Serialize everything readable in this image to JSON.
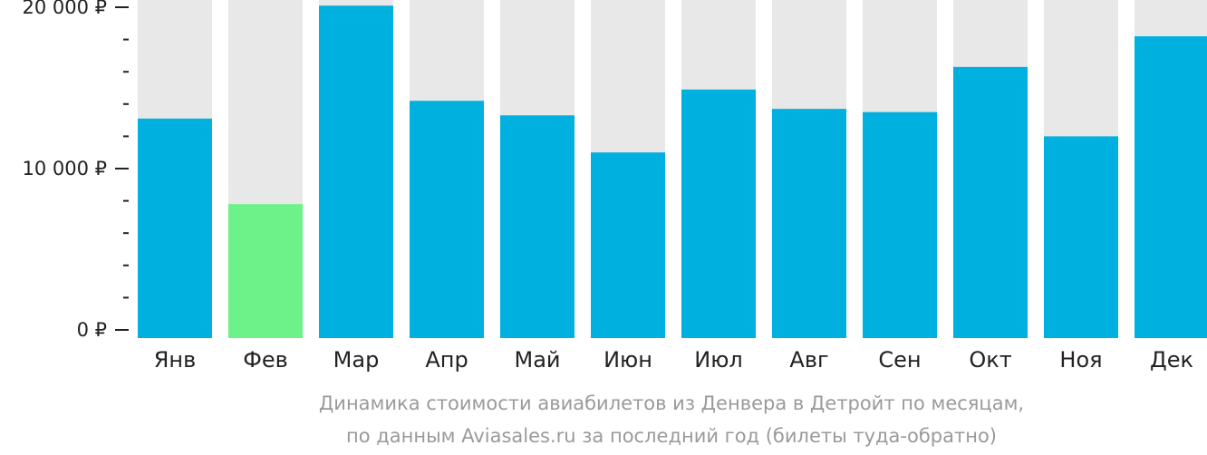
{
  "chart_data": {
    "type": "bar",
    "categories": [
      "Янв",
      "Фев",
      "Мар",
      "Апр",
      "Май",
      "Июн",
      "Июл",
      "Авг",
      "Сен",
      "Окт",
      "Ноя",
      "Дек"
    ],
    "values": [
      13100,
      7800,
      20100,
      14200,
      13300,
      11000,
      14900,
      13700,
      13500,
      16300,
      12000,
      18200
    ],
    "ylim": [
      0,
      20000
    ],
    "y_ticks": [
      {
        "value": 0,
        "label": "0 ₽"
      },
      {
        "value": 10000,
        "label": "10 000 ₽"
      },
      {
        "value": 20000,
        "label": "20 000 ₽"
      }
    ],
    "minor_tick_step": 2000,
    "highlight_index": 1,
    "colors": {
      "bar": "#00b0de",
      "highlight": "#6cf288",
      "track": "#e8e8e8"
    },
    "caption_lines": [
      "Динамика стоимости авиабилетов из Денвера в Детройт по месяцам,",
      "по данным Aviasales.ru за последний год (билеты туда-обратно)"
    ]
  }
}
